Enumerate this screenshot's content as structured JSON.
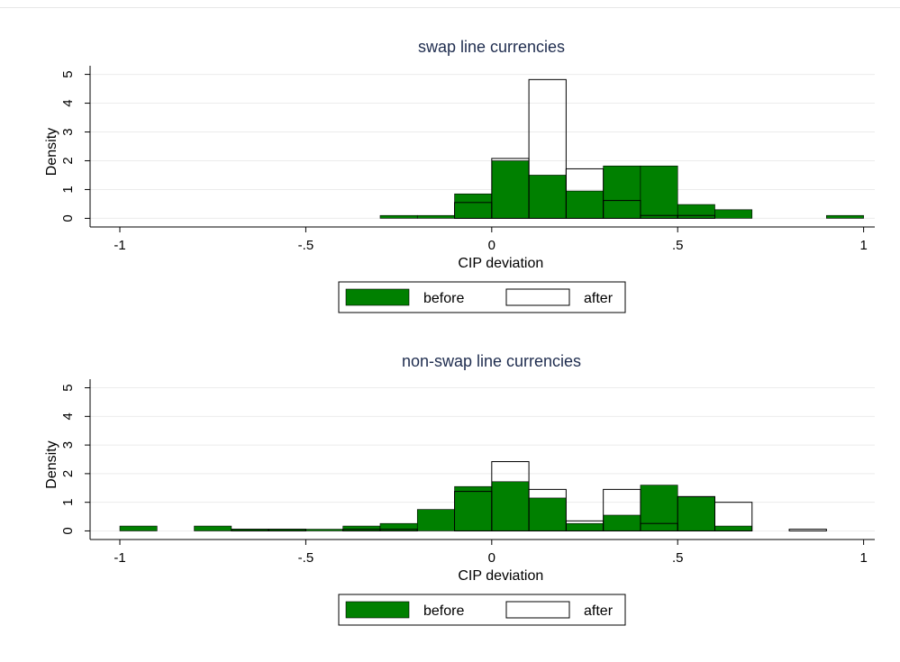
{
  "chart_data": [
    {
      "type": "bar",
      "title": "swap line currencies",
      "xlabel": "CIP deviation",
      "ylabel": "Density",
      "xlim": [
        -1.08,
        1.03
      ],
      "ylim": [
        -0.3,
        5.3
      ],
      "xticks": [
        -1,
        -0.5,
        0,
        0.5,
        1
      ],
      "xtick_labels": [
        "-1",
        "-.5",
        "0",
        ".5",
        "1"
      ],
      "yticks": [
        0,
        1,
        2,
        3,
        4,
        5
      ],
      "ytick_labels": [
        "0",
        "1",
        "2",
        "3",
        "4",
        "5"
      ],
      "grid": true,
      "legend_position": "bottom",
      "series": [
        {
          "name": "before",
          "color": "#008000",
          "fill": true,
          "bins": [
            {
              "x0": -0.3,
              "x1": -0.2,
              "y": 0.1
            },
            {
              "x0": -0.2,
              "x1": -0.1,
              "y": 0.1
            },
            {
              "x0": -0.1,
              "x1": 0.0,
              "y": 0.85
            },
            {
              "x0": 0.0,
              "x1": 0.1,
              "y": 2.0
            },
            {
              "x0": 0.1,
              "x1": 0.2,
              "y": 1.5
            },
            {
              "x0": 0.2,
              "x1": 0.3,
              "y": 0.95
            },
            {
              "x0": 0.3,
              "x1": 0.4,
              "y": 1.82
            },
            {
              "x0": 0.4,
              "x1": 0.5,
              "y": 1.82
            },
            {
              "x0": 0.5,
              "x1": 0.6,
              "y": 0.48
            },
            {
              "x0": 0.6,
              "x1": 0.7,
              "y": 0.3
            },
            {
              "x0": 0.9,
              "x1": 1.0,
              "y": 0.1
            }
          ]
        },
        {
          "name": "after",
          "color": "#000000",
          "fill": false,
          "bins": [
            {
              "x0": -0.1,
              "x1": 0.0,
              "y": 0.55
            },
            {
              "x0": 0.0,
              "x1": 0.1,
              "y": 2.08
            },
            {
              "x0": 0.1,
              "x1": 0.2,
              "y": 4.82
            },
            {
              "x0": 0.2,
              "x1": 0.3,
              "y": 1.72
            },
            {
              "x0": 0.3,
              "x1": 0.4,
              "y": 0.62
            },
            {
              "x0": 0.4,
              "x1": 0.5,
              "y": 0.1
            },
            {
              "x0": 0.5,
              "x1": 0.6,
              "y": 0.1
            }
          ]
        }
      ]
    },
    {
      "type": "bar",
      "title": "non-swap line currencies",
      "xlabel": "CIP deviation",
      "ylabel": "Density",
      "xlim": [
        -1.08,
        1.03
      ],
      "ylim": [
        -0.3,
        5.3
      ],
      "xticks": [
        -1,
        -0.5,
        0,
        0.5,
        1
      ],
      "xtick_labels": [
        "-1",
        "-.5",
        "0",
        ".5",
        "1"
      ],
      "yticks": [
        0,
        1,
        2,
        3,
        4,
        5
      ],
      "ytick_labels": [
        "0",
        "1",
        "2",
        "3",
        "4",
        "5"
      ],
      "grid": true,
      "legend_position": "bottom",
      "series": [
        {
          "name": "before",
          "color": "#008000",
          "fill": true,
          "bins": [
            {
              "x0": -1.0,
              "x1": -0.9,
              "y": 0.17
            },
            {
              "x0": -0.8,
              "x1": -0.7,
              "y": 0.17
            },
            {
              "x0": -0.7,
              "x1": -0.6,
              "y": 0.06
            },
            {
              "x0": -0.6,
              "x1": -0.5,
              "y": 0.06
            },
            {
              "x0": -0.5,
              "x1": -0.4,
              "y": 0.06
            },
            {
              "x0": -0.4,
              "x1": -0.3,
              "y": 0.17
            },
            {
              "x0": -0.3,
              "x1": -0.2,
              "y": 0.26
            },
            {
              "x0": -0.2,
              "x1": -0.1,
              "y": 0.75
            },
            {
              "x0": -0.1,
              "x1": 0.0,
              "y": 1.55
            },
            {
              "x0": 0.0,
              "x1": 0.1,
              "y": 1.72
            },
            {
              "x0": 0.1,
              "x1": 0.2,
              "y": 1.15
            },
            {
              "x0": 0.2,
              "x1": 0.3,
              "y": 0.26
            },
            {
              "x0": 0.3,
              "x1": 0.4,
              "y": 0.55
            },
            {
              "x0": 0.4,
              "x1": 0.5,
              "y": 1.6
            },
            {
              "x0": 0.5,
              "x1": 0.6,
              "y": 1.2
            },
            {
              "x0": 0.6,
              "x1": 0.7,
              "y": 0.17
            }
          ]
        },
        {
          "name": "after",
          "color": "#000000",
          "fill": false,
          "bins": [
            {
              "x0": -0.7,
              "x1": -0.6,
              "y": 0.06
            },
            {
              "x0": -0.6,
              "x1": -0.5,
              "y": 0.06
            },
            {
              "x0": -0.4,
              "x1": -0.3,
              "y": 0.06
            },
            {
              "x0": -0.3,
              "x1": -0.2,
              "y": 0.06
            },
            {
              "x0": -0.1,
              "x1": 0.0,
              "y": 1.38
            },
            {
              "x0": 0.0,
              "x1": 0.1,
              "y": 2.42
            },
            {
              "x0": 0.1,
              "x1": 0.2,
              "y": 1.45
            },
            {
              "x0": 0.2,
              "x1": 0.3,
              "y": 0.35
            },
            {
              "x0": 0.3,
              "x1": 0.4,
              "y": 1.45
            },
            {
              "x0": 0.4,
              "x1": 0.5,
              "y": 0.26
            },
            {
              "x0": 0.5,
              "x1": 0.6,
              "y": 1.2
            },
            {
              "x0": 0.6,
              "x1": 0.7,
              "y": 1.0
            },
            {
              "x0": 0.8,
              "x1": 0.9,
              "y": 0.06
            }
          ]
        }
      ]
    }
  ]
}
